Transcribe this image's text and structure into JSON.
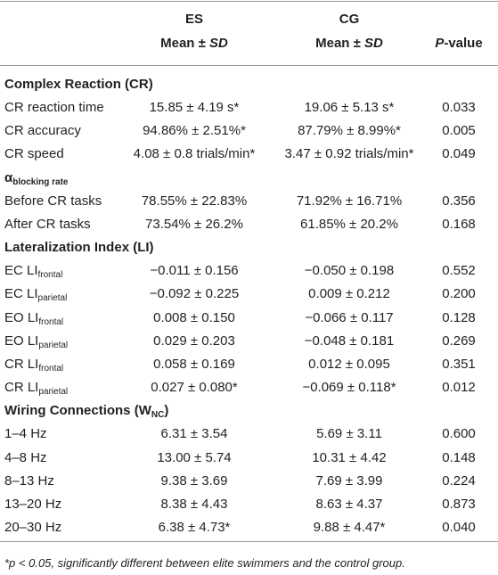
{
  "header": {
    "es": "ES",
    "cg": "CG",
    "mean_sd": [
      "Mean ± ",
      "SD"
    ],
    "p_value": [
      "P",
      "-value"
    ]
  },
  "sections": [
    {
      "title": {
        "text": "Complex Reaction (CR)"
      },
      "rows": [
        {
          "label": "CR reaction time",
          "es": "15.85 ± 4.19 s*",
          "cg": "19.06 ± 5.13 s*",
          "p": "0.033"
        },
        {
          "label": "CR accuracy",
          "es": "94.86% ± 2.51%*",
          "cg": "87.79% ± 8.99%*",
          "p": "0.005"
        },
        {
          "label": "CR speed",
          "es": "4.08 ± 0.8 trials/min*",
          "cg": "3.47 ± 0.92 trials/min*",
          "p": "0.049"
        }
      ]
    },
    {
      "title": {
        "text": "α",
        "sub": "blocking rate"
      },
      "rows": [
        {
          "label": "Before CR tasks",
          "es": "78.55% ± 22.83%",
          "cg": "71.92% ± 16.71%",
          "p": "0.356"
        },
        {
          "label": "After CR tasks",
          "es": "73.54% ± 26.2%",
          "cg": "61.85% ± 20.2%",
          "p": "0.168"
        }
      ]
    },
    {
      "title": {
        "text": "Lateralization Index (LI)"
      },
      "rows": [
        {
          "label": "EC LI",
          "sub": "frontal",
          "es": "−0.011 ± 0.156",
          "cg": "−0.050 ± 0.198",
          "p": "0.552"
        },
        {
          "label": "EC LI",
          "sub": "parietal",
          "es": "−0.092 ± 0.225",
          "cg": "0.009 ± 0.212",
          "p": "0.200"
        },
        {
          "label": "EO LI",
          "sub": "frontal",
          "es": "0.008 ± 0.150",
          "cg": "−0.066 ± 0.117",
          "p": "0.128"
        },
        {
          "label": "EO LI",
          "sub": "parietal",
          "es": "0.029 ± 0.203",
          "cg": "−0.048 ± 0.181",
          "p": "0.269"
        },
        {
          "label": "CR LI",
          "sub": "frontal",
          "es": "0.058 ± 0.169",
          "cg": "0.012 ± 0.095",
          "p": "0.351"
        },
        {
          "label": "CR LI",
          "sub": "parietal",
          "es": "0.027 ± 0.080*",
          "cg": "−0.069 ± 0.118*",
          "p": "0.012"
        }
      ]
    },
    {
      "title": {
        "text": "Wiring Connections (W",
        "sub": "NC",
        "after": ")"
      },
      "rows": [
        {
          "label": "1–4 Hz",
          "es": "6.31 ± 3.54",
          "cg": "5.69 ± 3.11",
          "p": "0.600"
        },
        {
          "label": "4–8 Hz",
          "es": "13.00 ± 5.74",
          "cg": "10.31 ± 4.42",
          "p": "0.148"
        },
        {
          "label": "8–13 Hz",
          "es": "9.38 ± 3.69",
          "cg": "7.69 ± 3.99",
          "p": "0.224"
        },
        {
          "label": "13–20 Hz",
          "es": "8.38 ± 4.43",
          "cg": "8.63 ± 4.37",
          "p": "0.873"
        },
        {
          "label": "20–30 Hz",
          "es": "6.38 ± 4.73*",
          "cg": "9.88 ± 4.47*",
          "p": "0.040"
        }
      ]
    }
  ],
  "footnote": "*p < 0.05, significantly different between elite swimmers and the control group."
}
